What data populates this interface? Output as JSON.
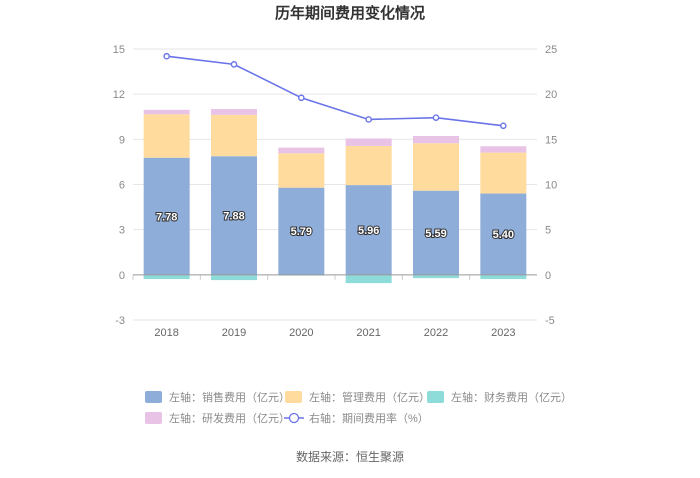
{
  "chart_data": {
    "type": "bar",
    "title": "历年期间费用变化情况",
    "categories": [
      "2018",
      "2019",
      "2020",
      "2021",
      "2022",
      "2023"
    ],
    "y_left": {
      "ticks": [
        "15",
        "12",
        "9",
        "6",
        "3",
        "0",
        "-3"
      ],
      "ylim": [
        -3,
        15
      ]
    },
    "y_right": {
      "ticks": [
        "25",
        "20",
        "15",
        "10",
        "5",
        "0",
        "-5"
      ],
      "ylim": [
        -5,
        25
      ]
    },
    "series": [
      {
        "name": "左轴：销售费用（亿元）",
        "axis": "left",
        "color": "#8fadd9",
        "values": [
          7.78,
          7.88,
          5.79,
          5.96,
          5.59,
          5.4
        ],
        "labels": [
          "7.78",
          "7.88",
          "5.79",
          "5.96",
          "5.59",
          "5.40"
        ]
      },
      {
        "name": "左轴：管理费用（亿元）",
        "axis": "left",
        "color": "#ffdc9e",
        "values": [
          2.88,
          2.75,
          2.28,
          2.6,
          3.15,
          2.72
        ]
      },
      {
        "name": "左轴：财务费用（亿元）",
        "axis": "left",
        "color": "#8edcd9",
        "values": [
          -0.28,
          -0.35,
          -0.05,
          -0.55,
          -0.22,
          -0.28
        ]
      },
      {
        "name": "左轴：研发费用（亿元）",
        "axis": "left",
        "color": "#e8c3e6",
        "values": [
          0.3,
          0.38,
          0.38,
          0.5,
          0.48,
          0.42
        ]
      },
      {
        "name": "右轴：期间费用率（%）",
        "axis": "right",
        "type": "line",
        "color": "#6a74e8",
        "values": [
          24.2,
          23.3,
          19.6,
          17.2,
          17.4,
          16.5
        ]
      }
    ],
    "grid": true,
    "legend_position": "bottom"
  },
  "source": "数据来源：恒生聚源"
}
